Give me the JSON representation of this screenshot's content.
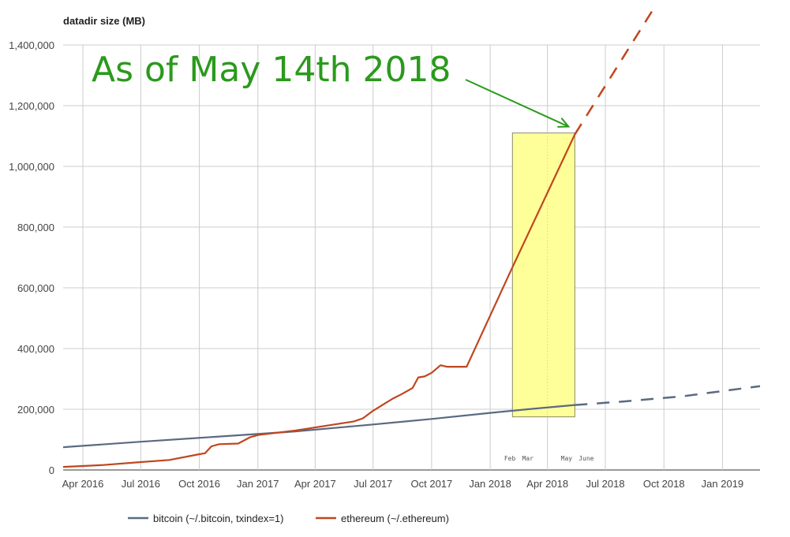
{
  "chart_data": {
    "type": "line",
    "ylabel": "datadir size (MB)",
    "ylim": [
      0,
      1400000
    ],
    "xlim": [
      "2016-03-01",
      "2019-03-01"
    ],
    "y_ticks": [
      {
        "value": 0,
        "label": "0"
      },
      {
        "value": 200000,
        "label": "200,000"
      },
      {
        "value": 400000,
        "label": "400,000"
      },
      {
        "value": 600000,
        "label": "600,000"
      },
      {
        "value": 800000,
        "label": "800,000"
      },
      {
        "value": 1000000,
        "label": "1,000,000"
      },
      {
        "value": 1200000,
        "label": "1,200,000"
      },
      {
        "value": 1400000,
        "label": "1,400,000"
      }
    ],
    "x_ticks": [
      {
        "date": "2016-04-01",
        "label": "Apr 2016"
      },
      {
        "date": "2016-07-01",
        "label": "Jul 2016"
      },
      {
        "date": "2016-10-01",
        "label": "Oct 2016"
      },
      {
        "date": "2017-01-01",
        "label": "Jan 2017"
      },
      {
        "date": "2017-04-01",
        "label": "Apr 2017"
      },
      {
        "date": "2017-07-01",
        "label": "Jul 2017"
      },
      {
        "date": "2017-10-01",
        "label": "Oct 2017"
      },
      {
        "date": "2018-01-01",
        "label": "Jan 2018"
      },
      {
        "date": "2018-04-01",
        "label": "Apr 2018"
      },
      {
        "date": "2018-07-01",
        "label": "Jul 2018"
      },
      {
        "date": "2018-10-01",
        "label": "Oct 2018"
      },
      {
        "date": "2019-01-01",
        "label": "Jan 2019"
      }
    ],
    "minor_ticks": [
      {
        "date": "2018-02-01",
        "label": "Feb"
      },
      {
        "date": "2018-03-01",
        "label": "Mar"
      },
      {
        "date": "2018-05-01",
        "label": "May"
      },
      {
        "date": "2018-06-01",
        "label": "June"
      }
    ],
    "grid": true,
    "legend_position": "bottom",
    "series": [
      {
        "name": "bitcoin (~/.bitcoin, txindex=1)",
        "color": "#5a6a82",
        "x": [
          "2016-03-01",
          "2016-07-01",
          "2016-11-01",
          "2017-03-01",
          "2017-07-01",
          "2017-10-01",
          "2018-01-01",
          "2018-03-01",
          "2018-05-14"
        ],
        "values": [
          75000,
          93000,
          110000,
          127000,
          150000,
          168000,
          188000,
          200000,
          214000
        ],
        "projection": {
          "x": [
            "2018-05-14",
            "2018-08-01",
            "2018-11-01",
            "2019-03-01"
          ],
          "values": [
            214000,
            226000,
            243000,
            276000
          ]
        }
      },
      {
        "name": "ethereum (~/.ethereum)",
        "color": "#c0461f",
        "x": [
          "2016-03-01",
          "2016-05-01",
          "2016-07-01",
          "2016-08-15",
          "2016-10-01",
          "2016-10-10",
          "2016-10-20",
          "2016-11-01",
          "2016-12-01",
          "2016-12-20",
          "2017-01-01",
          "2017-03-01",
          "2017-04-01",
          "2017-05-01",
          "2017-06-01",
          "2017-06-15",
          "2017-07-01",
          "2017-08-01",
          "2017-08-15",
          "2017-09-01",
          "2017-09-10",
          "2017-09-20",
          "2017-10-01",
          "2017-10-15",
          "2017-10-25",
          "2017-11-10",
          "2017-11-25",
          "2018-02-01",
          "2018-05-14"
        ],
        "values": [
          10000,
          16000,
          26000,
          33000,
          52000,
          55000,
          78000,
          85000,
          87000,
          108000,
          115000,
          130000,
          140000,
          150000,
          160000,
          170000,
          195000,
          235000,
          250000,
          270000,
          305000,
          308000,
          320000,
          345000,
          340000,
          340000,
          340000,
          650000,
          1105000
        ],
        "projection": {
          "x": [
            "2018-05-14",
            "2018-09-15"
          ],
          "values": [
            1105000,
            1520000
          ]
        }
      }
    ],
    "annotations": [
      {
        "text": "As of May 14th 2018",
        "target_date": "2018-05-14",
        "target_value": 1105000
      }
    ],
    "highlight": {
      "x_start": "2018-02-05",
      "x_end": "2018-05-14",
      "y_min": 175000,
      "y_max": 1110000,
      "color": "#ffff99"
    }
  }
}
